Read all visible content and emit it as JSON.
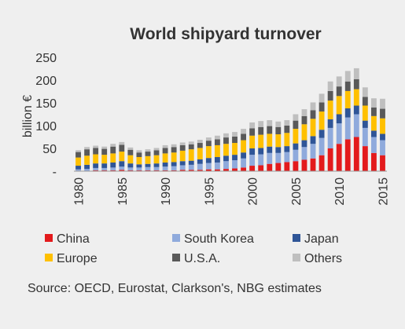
{
  "chart_data": {
    "type": "bar",
    "stacked": true,
    "title": "World shipyard turnover",
    "ylabel": "billion €",
    "xlabel": "",
    "ylim": [
      0,
      250
    ],
    "yticks": [
      0,
      50,
      100,
      150,
      200,
      250
    ],
    "x": [
      1980,
      1981,
      1982,
      1983,
      1984,
      1985,
      1986,
      1987,
      1988,
      1989,
      1990,
      1991,
      1992,
      1993,
      1994,
      1995,
      1996,
      1997,
      1998,
      1999,
      2000,
      2001,
      2002,
      2003,
      2004,
      2005,
      2006,
      2007,
      2008,
      2009,
      2010,
      2011,
      2012,
      2013,
      2014,
      2015
    ],
    "xticks": [
      1980,
      1985,
      1990,
      1995,
      2000,
      2005,
      2010,
      2015
    ],
    "grid": false,
    "legend_position": "bottom",
    "series": [
      {
        "name": "China",
        "color": "#e31a1c",
        "values": [
          1,
          1,
          2,
          2,
          2,
          3,
          2,
          2,
          2,
          2,
          2,
          2,
          3,
          3,
          3,
          4,
          4,
          5,
          6,
          8,
          12,
          13,
          16,
          18,
          20,
          22,
          25,
          28,
          35,
          50,
          60,
          70,
          75,
          55,
          40,
          35
        ]
      },
      {
        "name": "South Korea",
        "color": "#8faadc",
        "values": [
          3,
          4,
          5,
          5,
          6,
          7,
          6,
          6,
          7,
          7,
          8,
          9,
          10,
          11,
          13,
          14,
          15,
          17,
          18,
          20,
          24,
          24,
          24,
          22,
          22,
          25,
          28,
          32,
          38,
          45,
          45,
          48,
          50,
          40,
          35,
          33
        ]
      },
      {
        "name": "Japan",
        "color": "#2f5597",
        "values": [
          8,
          9,
          10,
          10,
          11,
          12,
          9,
          7,
          7,
          8,
          9,
          9,
          9,
          9,
          10,
          11,
          12,
          12,
          12,
          13,
          14,
          14,
          14,
          13,
          13,
          14,
          15,
          17,
          18,
          19,
          20,
          20,
          19,
          16,
          14,
          14
        ]
      },
      {
        "name": "Europe",
        "color": "#ffc000",
        "values": [
          18,
          20,
          20,
          19,
          20,
          21,
          18,
          16,
          17,
          18,
          20,
          21,
          23,
          25,
          25,
          26,
          26,
          26,
          26,
          27,
          28,
          29,
          28,
          28,
          29,
          32,
          35,
          38,
          40,
          41,
          40,
          38,
          36,
          33,
          32,
          34
        ]
      },
      {
        "name": "U.S.A.",
        "color": "#595959",
        "values": [
          12,
          14,
          14,
          13,
          15,
          15,
          12,
          10,
          10,
          11,
          12,
          12,
          12,
          11,
          11,
          12,
          13,
          14,
          14,
          14,
          16,
          17,
          17,
          16,
          16,
          18,
          18,
          19,
          20,
          21,
          21,
          21,
          22,
          19,
          19,
          21
        ]
      },
      {
        "name": "Others",
        "color": "#bfbfbf",
        "values": [
          4,
          5,
          5,
          5,
          6,
          6,
          5,
          5,
          5,
          5,
          6,
          6,
          6,
          6,
          7,
          7,
          8,
          9,
          10,
          11,
          13,
          13,
          13,
          12,
          12,
          14,
          15,
          17,
          19,
          21,
          22,
          23,
          24,
          21,
          20,
          22
        ]
      }
    ]
  },
  "source": "Source: OECD, Eurostat, Clarkson's, NBG estimates"
}
